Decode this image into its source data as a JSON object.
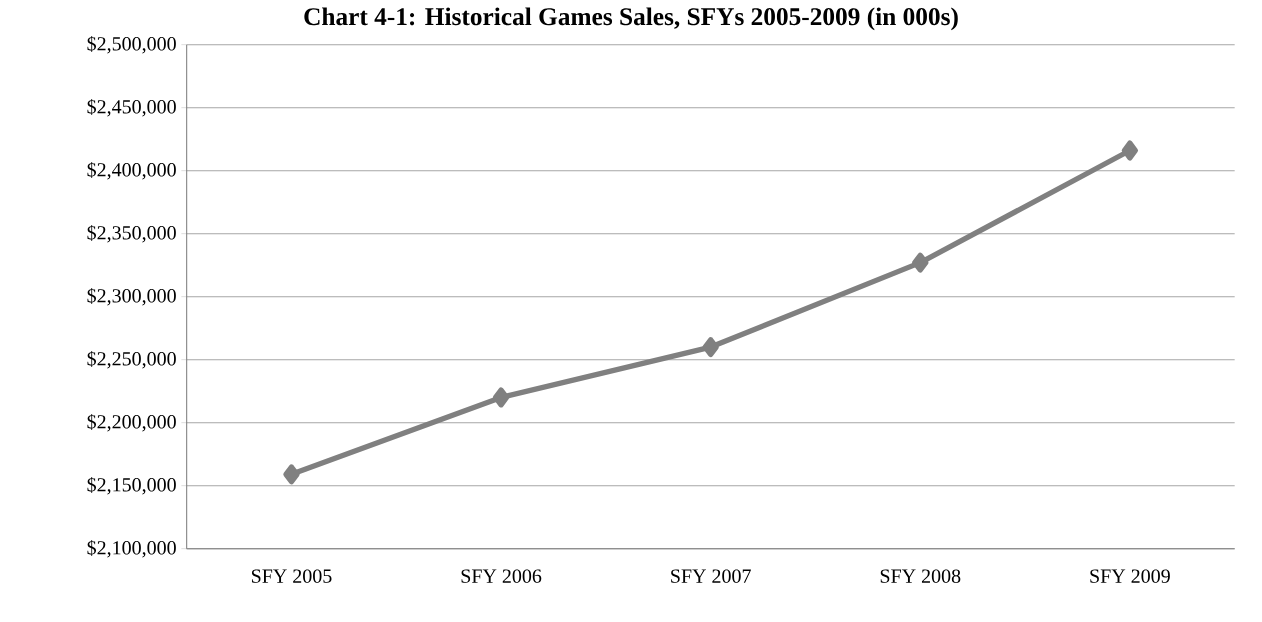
{
  "chart_data": {
    "type": "line",
    "title": "Chart 4-1: Historical Games Sales, SFYs 2005-2009 (in 000s)",
    "categories": [
      "SFY 2005",
      "SFY 2006",
      "SFY 2007",
      "SFY 2008",
      "SFY 2009"
    ],
    "series": [
      {
        "color": "#808080",
        "values": [
          2159000,
          2220000,
          2260000,
          2327000,
          2416000
        ]
      }
    ],
    "ylim": [
      2100000,
      2500000
    ],
    "yticks": [
      {
        "value": 2100000,
        "label": "$2,100,000"
      },
      {
        "value": 2150000,
        "label": "$2,150,000"
      },
      {
        "value": 2200000,
        "label": "$2,200,000"
      },
      {
        "value": 2250000,
        "label": "$2,250,000"
      },
      {
        "value": 2300000,
        "label": "$2,300,000"
      },
      {
        "value": 2350000,
        "label": "$2,350,000"
      },
      {
        "value": 2400000,
        "label": "$2,400,000"
      },
      {
        "value": 2450000,
        "label": "$2,450,000"
      },
      {
        "value": 2500000,
        "label": "$2,500,000"
      }
    ],
    "grid": "y",
    "marker": "diamond",
    "line_style": "solid"
  }
}
